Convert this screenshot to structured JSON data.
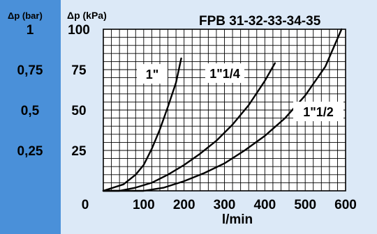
{
  "chart_data": {
    "type": "line",
    "title": "FPB 31-32-33-34-35",
    "xlabel": "l/min",
    "ylabel": "Δp (kPa)",
    "secondary_ylabel": "Δp (bar)",
    "xlim": [
      0,
      600
    ],
    "ylim": [
      0,
      100
    ],
    "x_ticks": [
      "0",
      "100",
      "200",
      "300",
      "400",
      "500",
      "600"
    ],
    "x_tick_values": [
      0,
      100,
      200,
      300,
      400,
      500,
      600
    ],
    "y_ticks": [
      "100",
      "75",
      "50",
      "25"
    ],
    "y_tick_values": [
      100,
      75,
      50,
      25
    ],
    "secondary_y_ticks": [
      "1",
      "0,75",
      "0,5",
      "0,25"
    ],
    "grid": true,
    "series": [
      {
        "name": "1\"",
        "x": [
          0,
          50,
          80,
          100,
          120,
          140,
          160,
          180,
          193
        ],
        "y": [
          0,
          4,
          10,
          16,
          26,
          38,
          52,
          67,
          82
        ]
      },
      {
        "name": "1\"1/4",
        "x": [
          0,
          40,
          80,
          120,
          160,
          200,
          240,
          280,
          320,
          360,
          400,
          425
        ],
        "y": [
          0,
          0,
          2,
          5,
          10,
          16,
          23,
          31,
          41,
          53,
          68,
          79
        ]
      },
      {
        "name": "1\"1/2",
        "x": [
          0,
          100,
          150,
          200,
          250,
          300,
          350,
          400,
          450,
          500,
          550,
          590
        ],
        "y": [
          0,
          0,
          2,
          6,
          11,
          17,
          25,
          34,
          45,
          59,
          77,
          100
        ]
      }
    ]
  }
}
